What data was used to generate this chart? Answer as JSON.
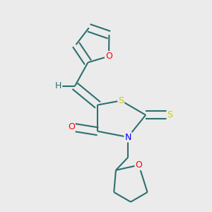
{
  "background_color": "#ebebeb",
  "bond_color": "#2d7070",
  "atom_colors": {
    "O": "#ff0000",
    "N": "#0000ff",
    "S": "#cccc00",
    "C": "#2d7070",
    "H": "#2d7070"
  },
  "line_width": 1.5,
  "dbo": 0.018
}
